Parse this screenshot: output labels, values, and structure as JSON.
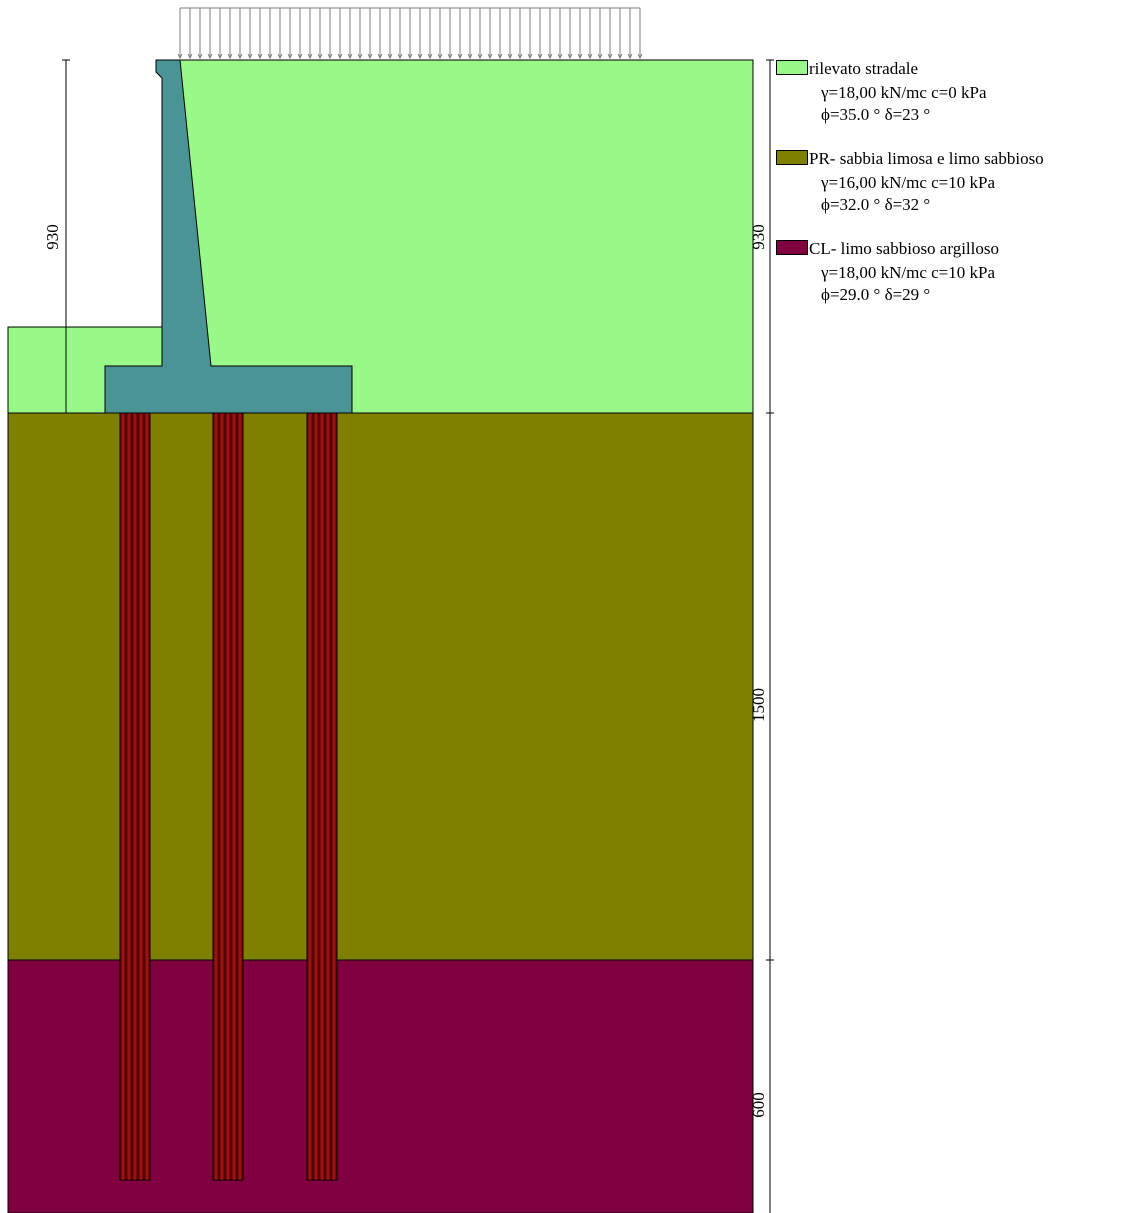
{
  "colors": {
    "rilevato": "#98F888",
    "pr": "#808000",
    "cl": "#800040",
    "wall": "#4A9496",
    "pile_dark": "#7A0A0A",
    "pile_stripe": "#C01818",
    "outline": "#000000",
    "load_arrow": "#7F7F7F"
  },
  "dimensions": {
    "left_height": "930",
    "right_top": "930",
    "right_middle": "1500",
    "right_bottom": "600"
  },
  "legend": [
    {
      "name": "rilevato stradale",
      "color": "#98F888",
      "gamma_line": "γ=18,00 kN/mc c=0 kPa",
      "angle_line": "ϕ=35.0 °  δ=23 °"
    },
    {
      "name": "PR- sabbia limosa e limo sabbioso",
      "color": "#808000",
      "gamma_line": "γ=16,00 kN/mc c=10 kPa",
      "angle_line": "ϕ=32.0 °  δ=32 °"
    },
    {
      "name": "CL- limo sabbioso argilloso",
      "color": "#800040",
      "gamma_line": "γ=18,00 kN/mc c=10 kPa",
      "angle_line": "ϕ=29.0 °  δ=29 °"
    }
  ],
  "piles_count": 3
}
